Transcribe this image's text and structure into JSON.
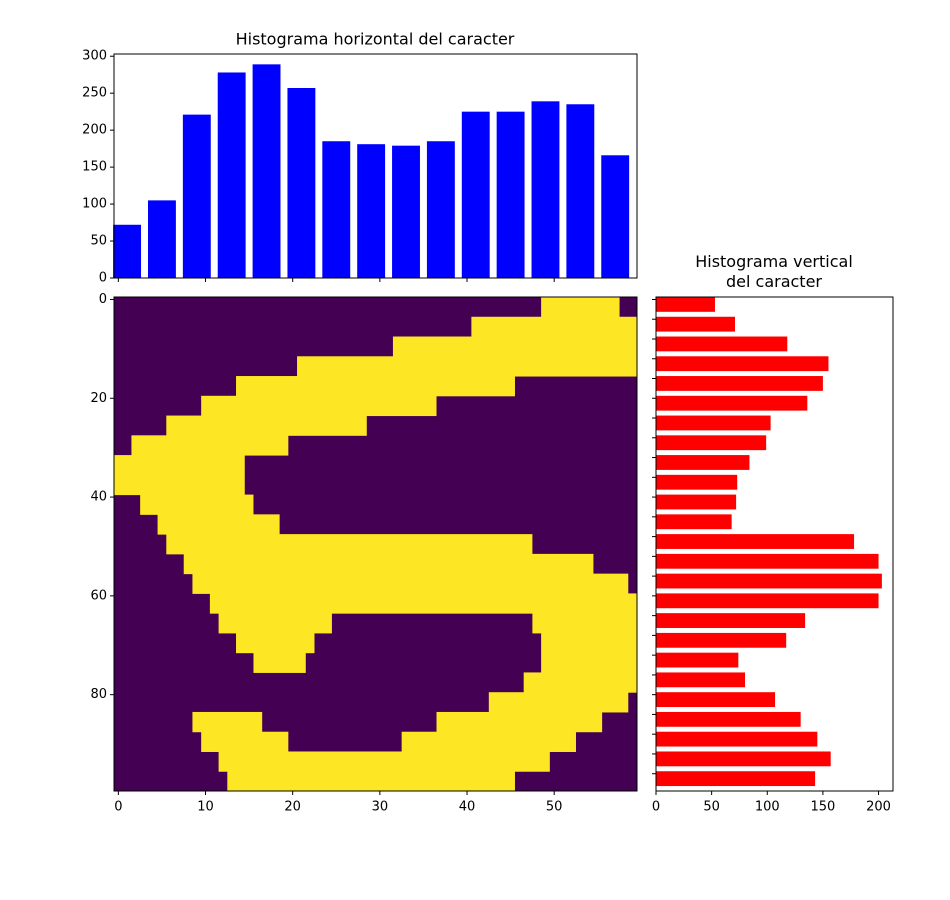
{
  "chart_data": [
    {
      "type": "bar",
      "title": "Histograma horizontal del caracter",
      "color": "#0000ff",
      "x": [
        1,
        5,
        9,
        13,
        17,
        21,
        25,
        29,
        33,
        37,
        41,
        45,
        49,
        53,
        57
      ],
      "values": [
        72,
        105,
        221,
        278,
        289,
        257,
        185,
        181,
        179,
        185,
        225,
        225,
        239,
        235,
        166
      ],
      "xlim": [
        -0.5,
        59.5
      ],
      "xticks": [
        0,
        10,
        20,
        30,
        40,
        50
      ],
      "ylim": [
        0,
        303
      ],
      "yticks": [
        0,
        50,
        100,
        150,
        200,
        250,
        300
      ]
    },
    {
      "type": "image",
      "background": "#440154",
      "color": "#fde725",
      "rows": [
        [
          [
            48.5,
            57.5
          ]
        ],
        [
          [
            40.5,
            59.5
          ]
        ],
        [
          [
            31.5,
            59.5
          ]
        ],
        [
          [
            20.5,
            59.5
          ]
        ],
        [
          [
            13.5,
            45.5
          ]
        ],
        [
          [
            9.5,
            36.5
          ]
        ],
        [
          [
            5.5,
            28.5
          ]
        ],
        [
          [
            1.5,
            19.5
          ]
        ],
        [
          [
            -0.5,
            14.5
          ]
        ],
        [
          [
            -0.5,
            14.5
          ]
        ],
        [
          [
            2.5,
            15.5
          ]
        ],
        [
          [
            4.5,
            18.5
          ]
        ],
        [
          [
            5.5,
            47.5
          ]
        ],
        [
          [
            7.5,
            54.5
          ]
        ],
        [
          [
            8.5,
            58.5
          ]
        ],
        [
          [
            10.5,
            59.5
          ]
        ],
        [
          [
            11.5,
            24.5
          ],
          [
            47.5,
            59.5
          ]
        ],
        [
          [
            13.5,
            22.5
          ],
          [
            48.5,
            59.5
          ]
        ],
        [
          [
            15.5,
            21.5
          ],
          [
            48.5,
            59.5
          ]
        ],
        [
          [
            46.5,
            59.5
          ]
        ],
        [
          [
            42.5,
            58.5
          ]
        ],
        [
          [
            8.5,
            16.5
          ],
          [
            36.5,
            55.5
          ]
        ],
        [
          [
            9.5,
            19.5
          ],
          [
            32.5,
            52.5
          ]
        ],
        [
          [
            11.5,
            49.5
          ]
        ],
        [
          [
            12.5,
            45.5
          ]
        ]
      ],
      "xlim": [
        -0.5,
        59.5
      ],
      "xticks": [
        0,
        10,
        20,
        30,
        40,
        50
      ],
      "ylim": [
        99.5,
        -0.5
      ],
      "yticks": [
        0,
        20,
        40,
        60,
        80
      ]
    },
    {
      "type": "barh",
      "title": "Histograma vertical\ndel caracter",
      "color": "#ff0000",
      "y": [
        1,
        5,
        9,
        13,
        17,
        21,
        25,
        29,
        33,
        37,
        41,
        45,
        49,
        53,
        57,
        61,
        65,
        69,
        73,
        77,
        81,
        85,
        89,
        93,
        97
      ],
      "values": [
        53,
        71,
        118,
        155,
        150,
        136,
        103,
        99,
        84,
        73,
        72,
        68,
        178,
        200,
        203,
        200,
        134,
        117,
        74,
        80,
        107,
        130,
        145,
        157,
        143
      ],
      "xlim": [
        0,
        213
      ],
      "xticks": [
        0,
        50,
        100,
        150,
        200
      ],
      "ylim": [
        99.5,
        -0.5
      ],
      "yticks": [
        0,
        4,
        8,
        12,
        16,
        20,
        24,
        28,
        32,
        36,
        40,
        44,
        48,
        52,
        56,
        60,
        64,
        68,
        72,
        76,
        80,
        84,
        88,
        92,
        96
      ]
    }
  ]
}
